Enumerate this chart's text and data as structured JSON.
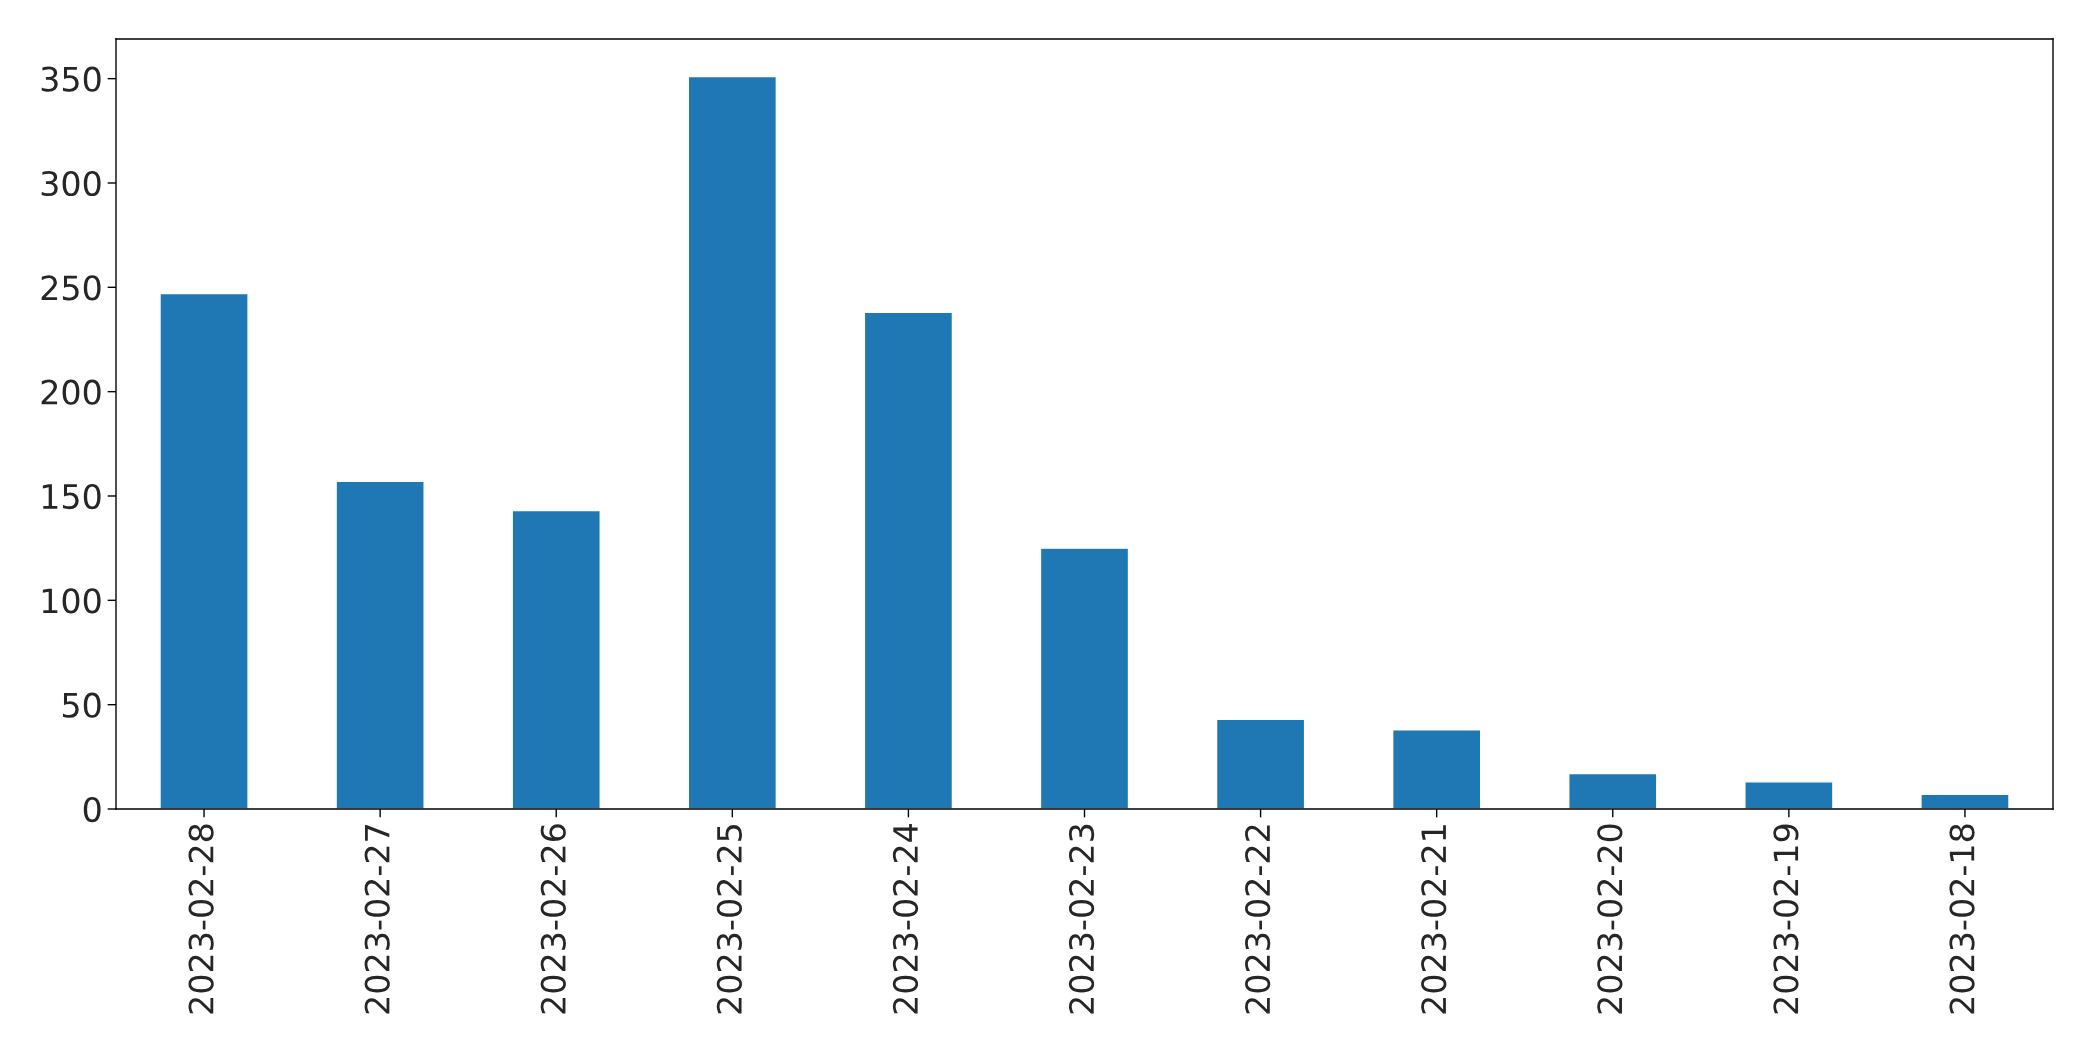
{
  "chart_data": {
    "type": "bar",
    "categories": [
      "2023-02-28",
      "2023-02-27",
      "2023-02-26",
      "2023-02-25",
      "2023-02-24",
      "2023-02-23",
      "2023-02-22",
      "2023-02-21",
      "2023-02-20",
      "2023-02-19",
      "2023-02-18"
    ],
    "values": [
      247,
      157,
      143,
      351,
      238,
      125,
      43,
      38,
      17,
      13,
      7
    ],
    "color": "#1f77b4",
    "ylim": [
      0,
      369
    ],
    "yticks": [
      0,
      50,
      100,
      150,
      200,
      250,
      300,
      350
    ],
    "grid": false,
    "legend": false
  }
}
